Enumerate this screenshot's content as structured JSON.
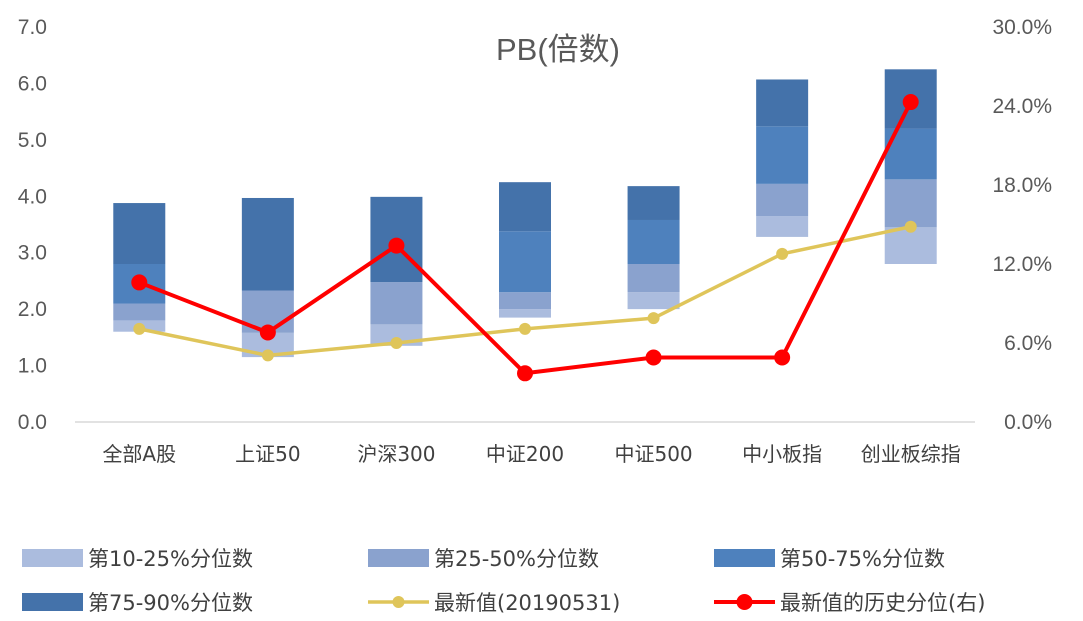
{
  "chart_data": {
    "type": "bar",
    "title": "PB(倍数)",
    "categories": [
      "全部A股",
      "上证50",
      "沪深300",
      "中证200",
      "中证500",
      "中小板指",
      "创业板综指"
    ],
    "ylim": [
      0,
      7
    ],
    "y2lim": [
      0,
      0.3
    ],
    "y_ticks": [
      "0.0",
      "1.0",
      "2.0",
      "3.0",
      "4.0",
      "5.0",
      "6.0",
      "7.0"
    ],
    "y2_ticks": [
      "0.0%",
      "6.0%",
      "12.0%",
      "18.0%",
      "24.0%",
      "30.0%"
    ],
    "percentile_boxes": [
      {
        "p10": 1.6,
        "p25": 1.8,
        "p50": 2.1,
        "p75": 2.8,
        "p90": 3.88
      },
      {
        "p10": 1.15,
        "p25": 1.58,
        "p50": 2.33,
        "p75": 2.33,
        "p90": 3.97
      },
      {
        "p10": 1.35,
        "p25": 1.73,
        "p50": 2.48,
        "p75": 2.48,
        "p90": 3.99
      },
      {
        "p10": 1.85,
        "p25": 2.0,
        "p50": 2.3,
        "p75": 3.38,
        "p90": 4.25
      },
      {
        "p10": 2.0,
        "p25": 2.3,
        "p50": 2.8,
        "p75": 3.58,
        "p90": 4.18
      },
      {
        "p10": 3.28,
        "p25": 3.65,
        "p50": 4.22,
        "p75": 5.24,
        "p90": 6.07
      },
      {
        "p10": 2.8,
        "p25": 3.45,
        "p50": 4.3,
        "p75": 5.2,
        "p90": 6.25
      }
    ],
    "series": [
      {
        "name": "第10-25%分位数",
        "color": "#abbcde"
      },
      {
        "name": "第25-50%分位数",
        "color": "#8aa2ce"
      },
      {
        "name": "第50-75%分位数",
        "color": "#4e81bd"
      },
      {
        "name": "第75-90%分位数",
        "color": "#4472aa"
      },
      {
        "name": "最新值(20190531)",
        "color": "#dfc55a",
        "values": [
          1.65,
          1.18,
          1.4,
          1.65,
          1.84,
          2.98,
          3.46
        ],
        "axis": "left"
      },
      {
        "name": "最新值的历史分位(右)",
        "color": "#ff0000",
        "values": [
          0.106,
          0.068,
          0.134,
          0.037,
          0.049,
          0.049,
          0.243
        ],
        "axis": "right"
      }
    ],
    "grid": false,
    "legend_position": "bottom"
  }
}
